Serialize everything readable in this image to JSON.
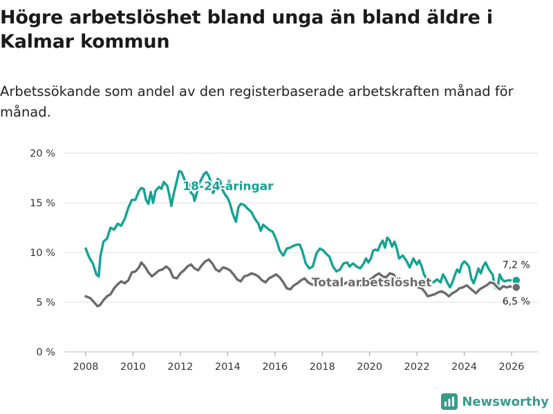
{
  "header": {
    "title": "Högre arbetslöshet bland unga än bland äldre i Kalmar kommun",
    "subtitle": "Arbetssökande som andel av den registerbaserade arbetskraften månad för månad."
  },
  "brand": {
    "name": "Newsworthy",
    "icon": "bar-chart-icon",
    "color": "#3a9a8a"
  },
  "chart_data": {
    "type": "line",
    "title": "Högre arbetslöshet bland unga än bland äldre i Kalmar kommun",
    "subtitle": "Arbetssökande som andel av den registerbaserade arbetskraften månad för månad.",
    "xlabel": "",
    "ylabel": "",
    "xlim": [
      2007.6,
      2027.1
    ],
    "ylim": [
      0,
      20
    ],
    "grid": true,
    "x_ticks": [
      2008,
      2010,
      2012,
      2014,
      2016,
      2018,
      2020,
      2022,
      2024,
      2026
    ],
    "x_tick_labels": [
      "2008",
      "2010",
      "2012",
      "2014",
      "2016",
      "2018",
      "2020",
      "2022",
      "2024",
      "2026"
    ],
    "y_ticks": [
      0,
      5,
      10,
      15,
      20
    ],
    "y_tick_labels": [
      "0 %",
      "5 %",
      "10 %",
      "15 %",
      "20 %"
    ],
    "series": [
      {
        "name": "18-24-åringar",
        "label": "18-24-åringar",
        "color": "#14a394",
        "end_label": "7,2 %",
        "points": [
          [
            2008.0,
            10.4
          ],
          [
            2008.15,
            9.5
          ],
          [
            2008.3,
            8.9
          ],
          [
            2008.45,
            7.8
          ],
          [
            2008.55,
            7.6
          ],
          [
            2008.62,
            9.6
          ],
          [
            2008.75,
            11.1
          ],
          [
            2008.9,
            11.4
          ],
          [
            2009.05,
            12.5
          ],
          [
            2009.2,
            12.3
          ],
          [
            2009.35,
            12.9
          ],
          [
            2009.5,
            12.7
          ],
          [
            2009.65,
            13.4
          ],
          [
            2009.8,
            14.5
          ],
          [
            2009.95,
            15.3
          ],
          [
            2010.1,
            15.3
          ],
          [
            2010.25,
            16.2
          ],
          [
            2010.35,
            16.5
          ],
          [
            2010.45,
            16.4
          ],
          [
            2010.55,
            15.3
          ],
          [
            2010.65,
            14.9
          ],
          [
            2010.75,
            16.1
          ],
          [
            2010.85,
            15.0
          ],
          [
            2010.95,
            16.2
          ],
          [
            2011.1,
            16.6
          ],
          [
            2011.2,
            16.4
          ],
          [
            2011.3,
            17.1
          ],
          [
            2011.45,
            16.7
          ],
          [
            2011.55,
            15.6
          ],
          [
            2011.62,
            14.7
          ],
          [
            2011.72,
            15.9
          ],
          [
            2011.85,
            17.2
          ],
          [
            2011.95,
            18.2
          ],
          [
            2012.05,
            18.1
          ],
          [
            2012.15,
            17.5
          ],
          [
            2012.25,
            16.9
          ],
          [
            2012.35,
            17.0
          ],
          [
            2012.45,
            16.0
          ],
          [
            2012.55,
            15.8
          ],
          [
            2012.6,
            15.2
          ],
          [
            2012.7,
            16.0
          ],
          [
            2012.8,
            17.0
          ],
          [
            2012.9,
            17.4
          ],
          [
            2013.0,
            17.9
          ],
          [
            2013.1,
            18.1
          ],
          [
            2013.2,
            17.7
          ],
          [
            2013.3,
            17.0
          ],
          [
            2013.38,
            16.0
          ],
          [
            2013.48,
            16.4
          ],
          [
            2013.58,
            17.4
          ],
          [
            2013.68,
            17.2
          ],
          [
            2013.78,
            16.3
          ],
          [
            2013.9,
            15.8
          ],
          [
            2014.0,
            15.5
          ],
          [
            2014.1,
            14.9
          ],
          [
            2014.2,
            14.0
          ],
          [
            2014.35,
            13.1
          ],
          [
            2014.45,
            14.5
          ],
          [
            2014.55,
            14.9
          ],
          [
            2014.7,
            14.8
          ],
          [
            2014.85,
            14.4
          ],
          [
            2015.0,
            14.1
          ],
          [
            2015.15,
            13.4
          ],
          [
            2015.3,
            12.9
          ],
          [
            2015.4,
            12.2
          ],
          [
            2015.5,
            12.8
          ],
          [
            2015.6,
            12.6
          ],
          [
            2015.75,
            12.3
          ],
          [
            2015.9,
            12.1
          ],
          [
            2016.0,
            11.6
          ],
          [
            2016.1,
            11.0
          ],
          [
            2016.2,
            10.2
          ],
          [
            2016.35,
            9.7
          ],
          [
            2016.5,
            10.4
          ],
          [
            2016.65,
            10.5
          ],
          [
            2016.8,
            10.7
          ],
          [
            2016.95,
            10.8
          ],
          [
            2017.05,
            10.8
          ],
          [
            2017.15,
            10.2
          ],
          [
            2017.3,
            8.9
          ],
          [
            2017.45,
            8.4
          ],
          [
            2017.6,
            8.6
          ],
          [
            2017.75,
            9.9
          ],
          [
            2017.9,
            10.4
          ],
          [
            2018.05,
            10.2
          ],
          [
            2018.15,
            9.9
          ],
          [
            2018.3,
            9.6
          ],
          [
            2018.45,
            8.6
          ],
          [
            2018.6,
            8.1
          ],
          [
            2018.75,
            8.3
          ],
          [
            2018.9,
            8.9
          ],
          [
            2019.05,
            9.0
          ],
          [
            2019.15,
            8.6
          ],
          [
            2019.3,
            8.9
          ],
          [
            2019.45,
            8.6
          ],
          [
            2019.6,
            8.4
          ],
          [
            2019.75,
            8.9
          ],
          [
            2019.85,
            9.4
          ],
          [
            2019.95,
            9.0
          ],
          [
            2020.05,
            9.4
          ],
          [
            2020.15,
            10.2
          ],
          [
            2020.25,
            10.3
          ],
          [
            2020.35,
            10.2
          ],
          [
            2020.45,
            10.8
          ],
          [
            2020.55,
            11.2
          ],
          [
            2020.65,
            10.5
          ],
          [
            2020.75,
            11.5
          ],
          [
            2020.85,
            11.2
          ],
          [
            2020.95,
            10.6
          ],
          [
            2021.05,
            11.1
          ],
          [
            2021.15,
            10.4
          ],
          [
            2021.25,
            9.4
          ],
          [
            2021.4,
            9.7
          ],
          [
            2021.55,
            9.2
          ],
          [
            2021.7,
            8.5
          ],
          [
            2021.85,
            9.4
          ],
          [
            2022.0,
            8.8
          ],
          [
            2022.1,
            9.2
          ],
          [
            2022.2,
            8.6
          ],
          [
            2022.3,
            7.8
          ],
          [
            2022.4,
            7.4
          ],
          [
            2022.55,
            7.2
          ],
          [
            2022.7,
            7.0
          ],
          [
            2022.85,
            7.3
          ],
          [
            2023.0,
            7.0
          ],
          [
            2023.1,
            7.8
          ],
          [
            2023.2,
            7.4
          ],
          [
            2023.3,
            6.9
          ],
          [
            2023.4,
            6.5
          ],
          [
            2023.5,
            7.0
          ],
          [
            2023.6,
            7.7
          ],
          [
            2023.7,
            8.3
          ],
          [
            2023.8,
            8.0
          ],
          [
            2023.9,
            8.8
          ],
          [
            2024.0,
            9.1
          ],
          [
            2024.1,
            8.9
          ],
          [
            2024.2,
            8.6
          ],
          [
            2024.3,
            7.4
          ],
          [
            2024.4,
            6.9
          ],
          [
            2024.5,
            7.6
          ],
          [
            2024.6,
            8.4
          ],
          [
            2024.7,
            7.9
          ],
          [
            2024.8,
            8.6
          ],
          [
            2024.9,
            9.0
          ],
          [
            2025.0,
            8.5
          ],
          [
            2025.1,
            8.1
          ],
          [
            2025.2,
            7.8
          ],
          [
            2025.3,
            6.5
          ],
          [
            2025.4,
            6.3
          ],
          [
            2025.5,
            7.8
          ],
          [
            2025.6,
            7.3
          ],
          [
            2025.7,
            7.1
          ],
          [
            2025.85,
            7.2
          ],
          [
            2026.05,
            7.2
          ],
          [
            2026.2,
            7.2
          ]
        ]
      },
      {
        "name": "Total arbetslöshet",
        "label": "Total arbetslöshet",
        "color": "#6b6b6b",
        "end_label": "6,5 %",
        "points": [
          [
            2008.0,
            5.6
          ],
          [
            2008.2,
            5.4
          ],
          [
            2008.35,
            5.0
          ],
          [
            2008.5,
            4.6
          ],
          [
            2008.6,
            4.7
          ],
          [
            2008.75,
            5.2
          ],
          [
            2008.9,
            5.6
          ],
          [
            2009.05,
            5.8
          ],
          [
            2009.2,
            6.4
          ],
          [
            2009.35,
            6.8
          ],
          [
            2009.5,
            7.1
          ],
          [
            2009.65,
            6.9
          ],
          [
            2009.8,
            7.2
          ],
          [
            2009.95,
            8.0
          ],
          [
            2010.1,
            8.1
          ],
          [
            2010.25,
            8.5
          ],
          [
            2010.35,
            9.0
          ],
          [
            2010.5,
            8.6
          ],
          [
            2010.65,
            8.0
          ],
          [
            2010.8,
            7.6
          ],
          [
            2010.95,
            7.9
          ],
          [
            2011.1,
            8.2
          ],
          [
            2011.25,
            8.3
          ],
          [
            2011.4,
            8.6
          ],
          [
            2011.55,
            8.3
          ],
          [
            2011.7,
            7.5
          ],
          [
            2011.85,
            7.4
          ],
          [
            2012.0,
            7.9
          ],
          [
            2012.15,
            8.2
          ],
          [
            2012.3,
            8.6
          ],
          [
            2012.45,
            8.8
          ],
          [
            2012.6,
            8.4
          ],
          [
            2012.75,
            8.2
          ],
          [
            2012.9,
            8.7
          ],
          [
            2013.05,
            9.1
          ],
          [
            2013.2,
            9.3
          ],
          [
            2013.35,
            8.9
          ],
          [
            2013.5,
            8.3
          ],
          [
            2013.65,
            8.1
          ],
          [
            2013.8,
            8.5
          ],
          [
            2013.95,
            8.4
          ],
          [
            2014.1,
            8.2
          ],
          [
            2014.25,
            7.8
          ],
          [
            2014.4,
            7.3
          ],
          [
            2014.55,
            7.1
          ],
          [
            2014.7,
            7.6
          ],
          [
            2014.85,
            7.7
          ],
          [
            2015.0,
            7.9
          ],
          [
            2015.15,
            7.8
          ],
          [
            2015.3,
            7.6
          ],
          [
            2015.45,
            7.2
          ],
          [
            2015.6,
            7.0
          ],
          [
            2015.75,
            7.4
          ],
          [
            2015.9,
            7.6
          ],
          [
            2016.05,
            7.8
          ],
          [
            2016.2,
            7.5
          ],
          [
            2016.35,
            7.0
          ],
          [
            2016.5,
            6.4
          ],
          [
            2016.65,
            6.3
          ],
          [
            2016.8,
            6.7
          ],
          [
            2016.95,
            6.9
          ],
          [
            2017.1,
            7.2
          ],
          [
            2017.25,
            7.4
          ],
          [
            2017.4,
            7.0
          ],
          [
            2017.55,
            6.8
          ],
          [
            2017.7,
            6.7
          ],
          [
            2017.85,
            6.9
          ],
          [
            2018.0,
            7.0
          ],
          [
            2018.15,
            7.1
          ],
          [
            2018.3,
            7.3
          ],
          [
            2018.45,
            7.0
          ],
          [
            2018.6,
            6.7
          ],
          [
            2018.75,
            6.6
          ],
          [
            2018.9,
            6.8
          ],
          [
            2019.05,
            7.0
          ],
          [
            2019.2,
            7.1
          ],
          [
            2019.35,
            6.8
          ],
          [
            2019.5,
            6.6
          ],
          [
            2019.65,
            6.7
          ],
          [
            2019.8,
            7.0
          ],
          [
            2019.95,
            7.2
          ],
          [
            2020.1,
            7.4
          ],
          [
            2020.25,
            7.7
          ],
          [
            2020.4,
            7.9
          ],
          [
            2020.55,
            7.6
          ],
          [
            2020.7,
            7.5
          ],
          [
            2020.85,
            7.9
          ],
          [
            2021.0,
            7.8
          ],
          [
            2021.15,
            7.4
          ],
          [
            2021.3,
            7.2
          ],
          [
            2021.45,
            7.0
          ],
          [
            2021.6,
            6.8
          ],
          [
            2021.75,
            6.9
          ],
          [
            2021.9,
            6.7
          ],
          [
            2022.05,
            6.5
          ],
          [
            2022.2,
            6.4
          ],
          [
            2022.35,
            6.0
          ],
          [
            2022.45,
            5.6
          ],
          [
            2022.6,
            5.7
          ],
          [
            2022.75,
            5.8
          ],
          [
            2022.9,
            6.0
          ],
          [
            2023.05,
            6.1
          ],
          [
            2023.2,
            5.9
          ],
          [
            2023.35,
            5.6
          ],
          [
            2023.5,
            5.9
          ],
          [
            2023.65,
            6.1
          ],
          [
            2023.8,
            6.4
          ],
          [
            2023.95,
            6.5
          ],
          [
            2024.1,
            6.7
          ],
          [
            2024.25,
            6.4
          ],
          [
            2024.4,
            6.1
          ],
          [
            2024.5,
            5.9
          ],
          [
            2024.65,
            6.3
          ],
          [
            2024.8,
            6.5
          ],
          [
            2024.95,
            6.7
          ],
          [
            2025.1,
            7.0
          ],
          [
            2025.25,
            6.9
          ],
          [
            2025.4,
            6.5
          ],
          [
            2025.5,
            6.3
          ],
          [
            2025.65,
            6.6
          ],
          [
            2025.8,
            6.5
          ],
          [
            2025.95,
            6.6
          ],
          [
            2026.05,
            6.5
          ],
          [
            2026.2,
            6.5
          ]
        ]
      }
    ]
  }
}
